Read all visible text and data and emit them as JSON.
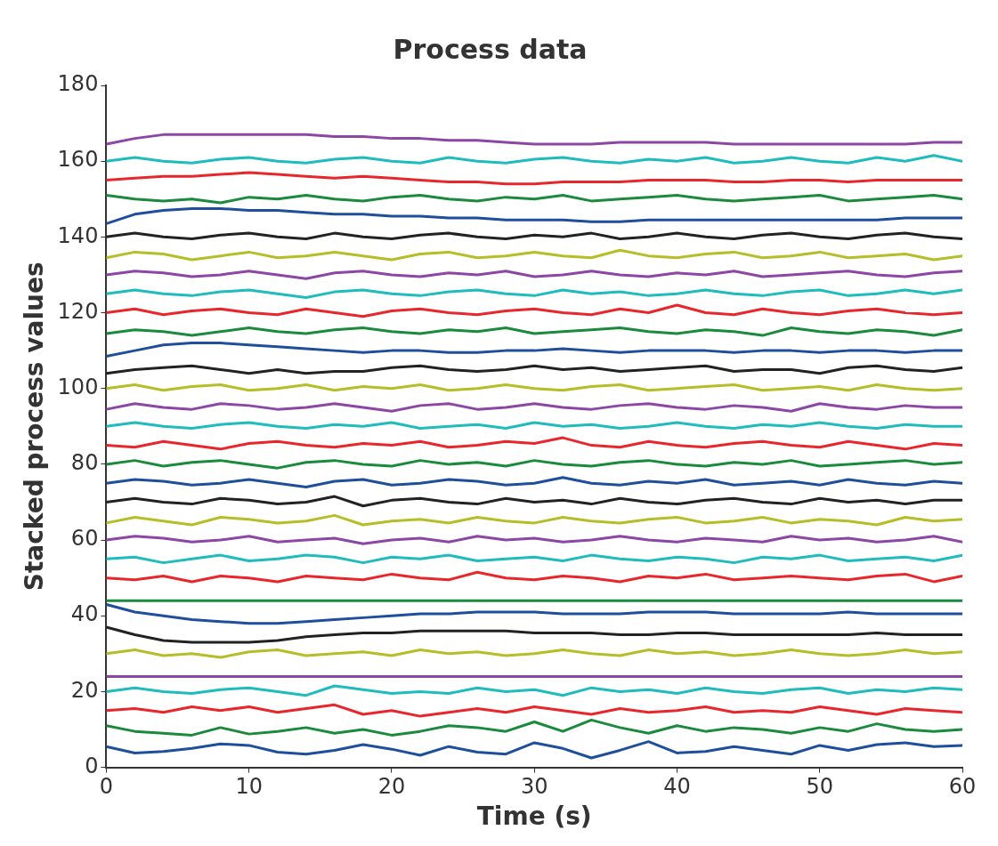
{
  "chart_data": {
    "type": "line",
    "title": "Process data",
    "xlabel": "Time (s)",
    "ylabel": "Stacked process values",
    "x": [
      0,
      2,
      4,
      6,
      8,
      10,
      12,
      14,
      16,
      18,
      20,
      22,
      24,
      26,
      28,
      30,
      32,
      34,
      36,
      38,
      40,
      42,
      44,
      46,
      48,
      50,
      52,
      54,
      56,
      58,
      60
    ],
    "xlim": [
      0,
      60
    ],
    "xticks": [
      0,
      10,
      20,
      30,
      40,
      50,
      60
    ],
    "ylim": [
      0,
      180
    ],
    "yticks": [
      0,
      20,
      40,
      60,
      80,
      100,
      120,
      140,
      160,
      180
    ],
    "grid": false,
    "legend": false,
    "series": [
      {
        "color": "#1f4e9c",
        "values": [
          5.5,
          3.8,
          4.2,
          5.0,
          6.2,
          5.8,
          4.0,
          3.5,
          4.5,
          6.0,
          4.8,
          3.2,
          5.5,
          4.0,
          3.5,
          6.5,
          5.0,
          2.5,
          4.5,
          6.8,
          3.8,
          4.2,
          5.5,
          4.5,
          3.5,
          5.8,
          4.5,
          6.0,
          6.5,
          5.5,
          5.8
        ]
      },
      {
        "color": "#1a8a3c",
        "values": [
          11,
          9.5,
          9,
          8.5,
          10.5,
          8.8,
          9.5,
          10.5,
          9,
          10,
          8.5,
          9.5,
          11,
          10.5,
          9.5,
          12,
          9.5,
          12.5,
          10.5,
          9,
          11,
          9.5,
          10.5,
          10,
          9,
          10.5,
          9.5,
          11.5,
          10,
          9.5,
          10
        ]
      },
      {
        "color": "#e8262b",
        "values": [
          15,
          15.5,
          14.5,
          16,
          15,
          16,
          14.5,
          15.5,
          16.5,
          14,
          15,
          13.5,
          14.5,
          15.5,
          14.5,
          16,
          15,
          14,
          15.5,
          14.5,
          15,
          16,
          14.5,
          15,
          14.5,
          16,
          15,
          14,
          15.5,
          15,
          14.5
        ]
      },
      {
        "color": "#1fbcbc",
        "values": [
          20,
          21,
          20,
          19.5,
          20.5,
          21,
          20,
          19,
          21.5,
          20.5,
          19.5,
          20,
          19.5,
          21,
          20,
          20.5,
          19,
          21,
          20,
          20.5,
          19.5,
          21,
          20,
          19.5,
          20.5,
          21,
          19.5,
          20.5,
          20,
          21,
          20.5
        ]
      },
      {
        "color": "#8b46a6",
        "values": [
          24,
          24,
          24,
          24,
          24,
          24,
          24,
          24,
          24,
          24,
          24,
          24,
          24,
          24,
          24,
          24,
          24,
          24,
          24,
          24,
          24,
          24,
          24,
          24,
          24,
          24,
          24,
          24,
          24,
          24,
          24
        ]
      },
      {
        "color": "#b5be27",
        "values": [
          30,
          31,
          29.5,
          30,
          29,
          30.5,
          31,
          29.5,
          30,
          30.5,
          29.5,
          31,
          30,
          30.5,
          29.5,
          30,
          31,
          30,
          29.5,
          31,
          30,
          30.5,
          29.5,
          30,
          31,
          30,
          29.5,
          30,
          31,
          30,
          30.5
        ]
      },
      {
        "color": "#222222",
        "values": [
          37,
          35,
          33.5,
          33,
          33,
          33,
          33.5,
          34.5,
          35,
          35.5,
          35.5,
          36,
          36,
          36,
          36,
          35.5,
          35.5,
          35.5,
          35,
          35,
          35.5,
          35.5,
          35,
          35,
          35,
          35,
          35,
          35.5,
          35,
          35,
          35
        ]
      },
      {
        "color": "#1f4e9c",
        "values": [
          43,
          41,
          40,
          39,
          38.5,
          38,
          38,
          38.5,
          39,
          39.5,
          40,
          40.5,
          40.5,
          41,
          41,
          41,
          40.5,
          40.5,
          40.5,
          41,
          41,
          41,
          40.5,
          40.5,
          40.5,
          40.5,
          41,
          40.5,
          40.5,
          40.5,
          40.5
        ]
      },
      {
        "color": "#1a8a3c",
        "values": [
          44,
          44,
          44,
          44,
          44,
          44,
          44,
          44,
          44,
          44,
          44,
          44,
          44,
          44,
          44,
          44,
          44,
          44,
          44,
          44,
          44,
          44,
          44,
          44,
          44,
          44,
          44,
          44,
          44,
          44,
          44
        ]
      },
      {
        "color": "#e8262b",
        "values": [
          50,
          49.5,
          50.5,
          49,
          50.5,
          50,
          49,
          50.5,
          50,
          49.5,
          51,
          50,
          49.5,
          51.5,
          50,
          49.5,
          50.5,
          50,
          49,
          50.5,
          50,
          51,
          49.5,
          50,
          50.5,
          50,
          49.5,
          50.5,
          51,
          49,
          50.5
        ]
      },
      {
        "color": "#1fbcbc",
        "values": [
          55,
          55.5,
          54,
          55,
          56,
          54.5,
          55,
          56,
          55.5,
          54,
          55.5,
          55,
          56,
          54.5,
          55,
          55.5,
          54.5,
          56,
          55,
          54.5,
          55.5,
          55,
          54,
          55.5,
          55,
          56,
          54.5,
          55,
          55.5,
          54.5,
          56
        ]
      },
      {
        "color": "#8b46a6",
        "values": [
          60,
          61,
          60.5,
          59.5,
          60,
          61,
          59.5,
          60,
          60.5,
          59,
          60,
          60.5,
          59.5,
          61,
          60,
          60.5,
          59.5,
          60,
          61,
          60,
          59.5,
          60.5,
          60,
          59.5,
          61,
          60,
          60.5,
          59.5,
          60,
          61,
          59.5
        ]
      },
      {
        "color": "#b5be27",
        "values": [
          64.5,
          66,
          65,
          64,
          66,
          65.5,
          64.5,
          65,
          66.5,
          64,
          65,
          65.5,
          64.5,
          66,
          65,
          64.5,
          66,
          65,
          64.5,
          65.5,
          66,
          64.5,
          65,
          66,
          64.5,
          65.5,
          65,
          64,
          66,
          65,
          65.5
        ]
      },
      {
        "color": "#222222",
        "values": [
          70,
          71,
          70,
          69.5,
          71,
          70.5,
          69.5,
          70,
          71.5,
          69,
          70.5,
          71,
          70,
          69.5,
          71,
          70,
          70.5,
          69.5,
          71,
          70,
          69.5,
          70.5,
          71,
          70,
          69.5,
          71,
          70,
          70.5,
          69.5,
          70.5,
          70.5
        ]
      },
      {
        "color": "#1f4e9c",
        "values": [
          75,
          76,
          75.5,
          74.5,
          75,
          76,
          75,
          74,
          75.5,
          76,
          74.5,
          75,
          76,
          75.5,
          74.5,
          75,
          76.5,
          75,
          74.5,
          75.5,
          75,
          76,
          74.5,
          75,
          75.5,
          74.5,
          76,
          75,
          74.5,
          75.5,
          75
        ]
      },
      {
        "color": "#1a8a3c",
        "values": [
          80,
          81,
          79.5,
          80.5,
          81,
          80,
          79,
          80.5,
          81,
          80,
          79.5,
          81,
          80,
          80.5,
          79.5,
          81,
          80,
          79.5,
          80.5,
          81,
          80,
          79.5,
          80.5,
          80,
          81,
          79.5,
          80,
          80.5,
          81,
          80,
          80.5
        ]
      },
      {
        "color": "#e8262b",
        "values": [
          85,
          84.5,
          86,
          85,
          84,
          85.5,
          86,
          85,
          84.5,
          85.5,
          85,
          86,
          84.5,
          85,
          86,
          85.5,
          87,
          85,
          84.5,
          86,
          85,
          84.5,
          85.5,
          86,
          85,
          84.5,
          86,
          85,
          84,
          85.5,
          85
        ]
      },
      {
        "color": "#1fbcbc",
        "values": [
          90,
          91,
          90,
          89.5,
          90.5,
          91,
          90,
          89.5,
          90.5,
          90,
          91,
          89.5,
          90,
          90.5,
          89.5,
          91,
          90,
          90.5,
          89.5,
          90,
          91,
          90,
          89.5,
          90.5,
          90,
          91,
          90,
          89.5,
          90.5,
          90,
          90
        ]
      },
      {
        "color": "#8b46a6",
        "values": [
          94.5,
          96,
          95,
          94.5,
          96,
          95.5,
          94.5,
          95,
          96,
          95,
          94,
          95.5,
          96,
          94.5,
          95,
          96,
          95,
          94.5,
          95.5,
          96,
          95,
          94.5,
          95.5,
          95,
          94,
          96,
          95,
          94.5,
          95.5,
          95,
          95
        ]
      },
      {
        "color": "#b5be27",
        "values": [
          100,
          101,
          99.5,
          100.5,
          101,
          99.5,
          100,
          101,
          99.5,
          100.5,
          100,
          101,
          99.5,
          100,
          101,
          100,
          99.5,
          100.5,
          101,
          99.5,
          100,
          100.5,
          101,
          99.5,
          100,
          100.5,
          99.5,
          101,
          100,
          99.5,
          100
        ]
      },
      {
        "color": "#222222",
        "values": [
          104,
          105,
          105.5,
          106,
          105,
          104,
          105,
          104,
          104.5,
          104.5,
          105.5,
          106,
          105,
          104.5,
          105,
          106,
          105,
          105.5,
          104.5,
          105,
          105.5,
          106,
          104.5,
          105,
          105,
          104,
          105.5,
          106,
          105,
          104.5,
          105.5
        ]
      },
      {
        "color": "#1f4e9c",
        "values": [
          108.5,
          110,
          111.5,
          112,
          112,
          111.5,
          111,
          110.5,
          110,
          109.5,
          110,
          110,
          109.5,
          109.5,
          110,
          110,
          110.5,
          110,
          109.5,
          110,
          110,
          110,
          109.5,
          110,
          110,
          109.5,
          110,
          110,
          109.5,
          110,
          110
        ]
      },
      {
        "color": "#1a8a3c",
        "values": [
          114.5,
          115.5,
          115,
          114,
          115,
          116,
          115,
          114.5,
          115.5,
          116,
          115,
          114.5,
          115.5,
          115,
          116,
          114.5,
          115,
          115.5,
          116,
          115,
          114.5,
          115.5,
          115,
          114,
          116,
          115,
          114.5,
          115.5,
          115,
          114,
          115.5
        ]
      },
      {
        "color": "#e8262b",
        "values": [
          120,
          121,
          119.5,
          120.5,
          121,
          120,
          119.5,
          121,
          120,
          119,
          120.5,
          121,
          120,
          119.5,
          120.5,
          121,
          120,
          119.5,
          121,
          120,
          122,
          120,
          119.5,
          121,
          120,
          119.5,
          120.5,
          121,
          120,
          119.5,
          120
        ]
      },
      {
        "color": "#1fbcbc",
        "values": [
          125,
          126,
          125,
          124.5,
          125.5,
          126,
          125,
          124,
          125.5,
          126,
          125,
          124.5,
          125.5,
          126,
          125,
          124.5,
          126,
          125,
          125.5,
          124.5,
          125,
          126,
          125,
          124.5,
          125.5,
          126,
          124.5,
          125,
          126,
          125,
          126
        ]
      },
      {
        "color": "#8b46a6",
        "values": [
          130,
          131,
          130.5,
          129.5,
          130,
          131,
          130,
          129,
          130.5,
          131,
          130,
          129.5,
          130.5,
          130,
          131,
          129.5,
          130,
          131,
          130,
          129.5,
          130.5,
          130,
          131,
          129.5,
          130,
          130.5,
          131,
          130,
          129.5,
          130.5,
          131
        ]
      },
      {
        "color": "#b5be27",
        "values": [
          134.5,
          136,
          135.5,
          134,
          135,
          136,
          134.5,
          135,
          136,
          135,
          134,
          135.5,
          136,
          134.5,
          135,
          136,
          135,
          134.5,
          136.5,
          135,
          134.5,
          135.5,
          136,
          134.5,
          135,
          136,
          134.5,
          135,
          135.5,
          134,
          135
        ]
      },
      {
        "color": "#222222",
        "values": [
          140,
          141,
          140,
          139.5,
          140.5,
          141,
          140,
          139.5,
          141,
          140,
          139.5,
          140.5,
          141,
          140,
          139.5,
          140.5,
          140,
          141,
          139.5,
          140,
          141,
          140,
          139.5,
          140.5,
          141,
          140,
          139.5,
          140.5,
          141,
          140,
          139.5
        ]
      },
      {
        "color": "#1f4e9c",
        "values": [
          143.5,
          146,
          147,
          147.5,
          147.5,
          147,
          147,
          146.5,
          146,
          146,
          145.5,
          145.5,
          145,
          145,
          144.5,
          144.5,
          144.5,
          144,
          144,
          144.5,
          144.5,
          144.5,
          144.5,
          144.5,
          144.5,
          144.5,
          144.5,
          144.5,
          145,
          145,
          145
        ]
      },
      {
        "color": "#1a8a3c",
        "values": [
          151,
          150,
          149.5,
          150,
          149,
          150.5,
          150,
          151,
          150,
          149.5,
          150.5,
          151,
          150,
          149.5,
          150.5,
          150,
          151,
          149.5,
          150,
          150.5,
          151,
          150,
          149.5,
          150,
          150.5,
          151,
          149.5,
          150,
          150.5,
          151,
          150
        ]
      },
      {
        "color": "#e8262b",
        "values": [
          155,
          155.5,
          156,
          156,
          156.5,
          157,
          156.5,
          156,
          155.5,
          156,
          155.5,
          155,
          154.5,
          154.5,
          154,
          154,
          154.5,
          154.5,
          154.5,
          155,
          155,
          155,
          154.5,
          154.5,
          155,
          155,
          154.5,
          155,
          155,
          155,
          155
        ]
      },
      {
        "color": "#1fbcbc",
        "values": [
          160,
          161,
          160,
          159.5,
          160.5,
          161,
          160,
          159.5,
          160.5,
          161,
          160,
          159.5,
          161,
          160,
          159.5,
          160.5,
          161,
          160,
          159.5,
          160.5,
          160,
          161,
          159.5,
          160,
          161,
          160,
          159.5,
          161,
          160,
          161.5,
          160
        ]
      },
      {
        "color": "#8b46a6",
        "values": [
          164.5,
          166,
          167,
          167,
          167,
          167,
          167,
          167,
          166.5,
          166.5,
          166,
          166,
          165.5,
          165.5,
          165,
          164.5,
          164.5,
          164.5,
          165,
          165,
          165,
          165,
          164.5,
          164.5,
          164.5,
          164.5,
          164.5,
          164.5,
          164.5,
          165,
          165
        ]
      }
    ]
  }
}
